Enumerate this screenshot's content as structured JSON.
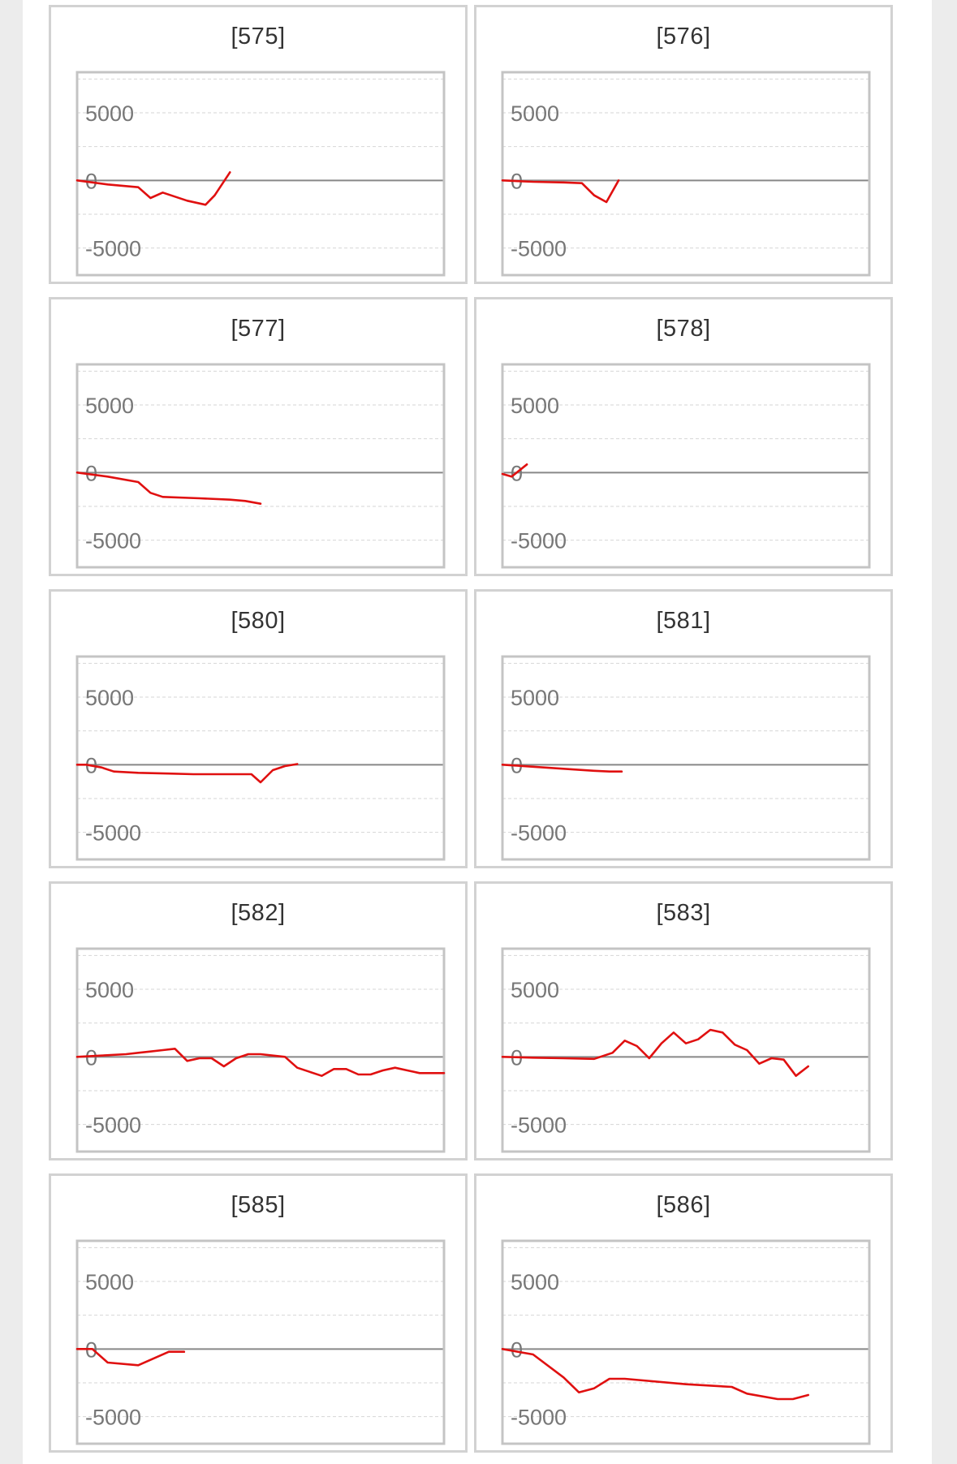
{
  "chart_data": [
    {
      "type": "line",
      "title": "[575]",
      "yticks": [
        5000,
        0,
        -5000
      ],
      "ylim": [
        -7000,
        8000
      ],
      "grid": true,
      "series": [
        {
          "x": [
            0,
            10,
            20,
            24,
            28,
            36,
            42,
            45,
            50
          ],
          "y": [
            0,
            -300,
            -500,
            -1300,
            -900,
            -1500,
            -1800,
            -1100,
            600
          ]
        }
      ]
    },
    {
      "type": "line",
      "title": "[576]",
      "yticks": [
        5000,
        0,
        -5000
      ],
      "ylim": [
        -7000,
        8000
      ],
      "grid": true,
      "series": [
        {
          "x": [
            0,
            10,
            20,
            26,
            30,
            34,
            38
          ],
          "y": [
            0,
            -100,
            -150,
            -200,
            -1100,
            -1600,
            0
          ]
        }
      ]
    },
    {
      "type": "line",
      "title": "[577]",
      "yticks": [
        5000,
        0,
        -5000
      ],
      "ylim": [
        -7000,
        8000
      ],
      "grid": true,
      "series": [
        {
          "x": [
            0,
            10,
            20,
            24,
            28,
            40,
            50,
            55,
            60
          ],
          "y": [
            0,
            -300,
            -700,
            -1500,
            -1800,
            -1900,
            -2000,
            -2100,
            -2300
          ]
        }
      ]
    },
    {
      "type": "line",
      "title": "[578]",
      "yticks": [
        5000,
        0,
        -5000
      ],
      "ylim": [
        -7000,
        8000
      ],
      "grid": true,
      "series": [
        {
          "x": [
            0,
            3,
            8
          ],
          "y": [
            -100,
            -300,
            600
          ]
        }
      ]
    },
    {
      "type": "line",
      "title": "[580]",
      "yticks": [
        5000,
        0,
        -5000
      ],
      "ylim": [
        -7000,
        8000
      ],
      "grid": true,
      "series": [
        {
          "x": [
            0,
            3,
            8,
            12,
            20,
            30,
            38,
            45,
            50,
            54,
            57,
            60,
            64,
            68,
            72
          ],
          "y": [
            0,
            0,
            -200,
            -500,
            -600,
            -650,
            -700,
            -700,
            -700,
            -700,
            -700,
            -1300,
            -400,
            -100,
            50
          ]
        }
      ]
    },
    {
      "type": "line",
      "title": "[581]",
      "yticks": [
        5000,
        0,
        -5000
      ],
      "ylim": [
        -7000,
        8000
      ],
      "grid": true,
      "series": [
        {
          "x": [
            0,
            10,
            20,
            30,
            35,
            39
          ],
          "y": [
            0,
            -150,
            -300,
            -450,
            -500,
            -500
          ]
        }
      ]
    },
    {
      "type": "line",
      "title": "[582]",
      "yticks": [
        5000,
        0,
        -5000
      ],
      "ylim": [
        -7000,
        8000
      ],
      "grid": true,
      "series": [
        {
          "x": [
            0,
            8,
            16,
            20,
            24,
            28,
            32,
            36,
            40,
            44,
            48,
            52,
            56,
            60,
            64,
            68,
            72,
            76,
            80,
            84,
            88,
            92,
            96,
            100,
            104,
            108,
            112,
            116,
            120
          ],
          "y": [
            0,
            100,
            200,
            300,
            400,
            500,
            600,
            -300,
            -100,
            -100,
            -700,
            -100,
            200,
            200,
            100,
            0,
            -800,
            -1100,
            -1400,
            -900,
            -900,
            -1300,
            -1300,
            -1000,
            -800,
            -1000,
            -1200,
            -1200,
            -1200
          ]
        }
      ]
    },
    {
      "type": "line",
      "title": "[583]",
      "yticks": [
        5000,
        0,
        -5000
      ],
      "ylim": [
        -7000,
        8000
      ],
      "grid": true,
      "series": [
        {
          "x": [
            0,
            10,
            20,
            30,
            36,
            40,
            44,
            48,
            52,
            56,
            60,
            64,
            68,
            72,
            76,
            80,
            84,
            88,
            92,
            96,
            100
          ],
          "y": [
            0,
            -60,
            -100,
            -150,
            300,
            1200,
            800,
            -100,
            1000,
            1800,
            1000,
            1300,
            2000,
            1800,
            900,
            500,
            -500,
            -100,
            -200,
            -1400,
            -700
          ]
        }
      ]
    },
    {
      "type": "line",
      "title": "[585]",
      "yticks": [
        5000,
        0,
        -5000
      ],
      "ylim": [
        -7000,
        8000
      ],
      "grid": true,
      "series": [
        {
          "x": [
            0,
            5,
            10,
            20,
            30,
            35
          ],
          "y": [
            0,
            0,
            -1000,
            -1200,
            -200,
            -200
          ]
        }
      ]
    },
    {
      "type": "line",
      "title": "[586]",
      "yticks": [
        5000,
        0,
        -5000
      ],
      "ylim": [
        -7000,
        8000
      ],
      "grid": true,
      "series": [
        {
          "x": [
            0,
            10,
            20,
            25,
            30,
            35,
            40,
            60,
            75,
            80,
            90,
            95,
            100
          ],
          "y": [
            0,
            -400,
            -2100,
            -3200,
            -2900,
            -2200,
            -2200,
            -2600,
            -2800,
            -3300,
            -3700,
            -3700,
            -3400
          ]
        }
      ]
    }
  ],
  "style": {
    "line_color": "#e01010",
    "zero_line_color": "#888888",
    "grid_color": "#d6d6d6",
    "frame_color": "#c4c4c4"
  }
}
